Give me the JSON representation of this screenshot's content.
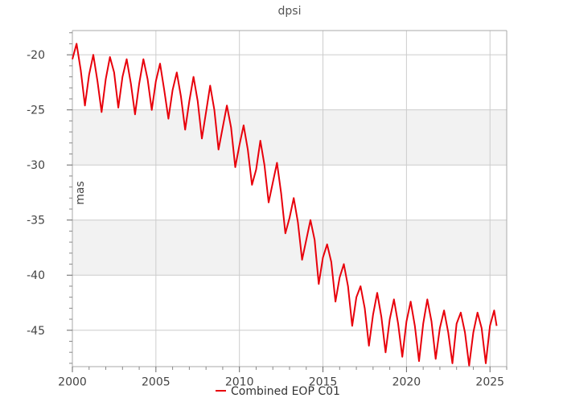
{
  "chart_data": {
    "type": "line",
    "title": "dpsi",
    "xlabel": "",
    "ylabel": "mas",
    "xlim": [
      2000,
      2026
    ],
    "ylim": [
      -48.3,
      -17.8
    ],
    "xticks": [
      2000,
      2005,
      2010,
      2015,
      2020,
      2025
    ],
    "xtick_labels": [
      "2000",
      "2005",
      "2010",
      "2015",
      "2020",
      "2025"
    ],
    "yticks": [
      -20,
      -25,
      -30,
      -35,
      -40,
      -45
    ],
    "ytick_labels": [
      "-20",
      "-25",
      "-30",
      "-35",
      "-40",
      "-45"
    ],
    "grid": true,
    "legend_position": "bottom-center",
    "colors": {
      "series": "#e8000b",
      "band": "#f2f2f2",
      "grid": "#cccccc",
      "axis": "#aaaaaa"
    },
    "series": [
      {
        "name": "Combined EOP C01",
        "x": [
          2000.0,
          2000.25,
          2000.5,
          2000.75,
          2001.0,
          2001.25,
          2001.5,
          2001.75,
          2002.0,
          2002.25,
          2002.5,
          2002.75,
          2003.0,
          2003.25,
          2003.5,
          2003.75,
          2004.0,
          2004.25,
          2004.5,
          2004.75,
          2005.0,
          2005.25,
          2005.5,
          2005.75,
          2006.0,
          2006.25,
          2006.5,
          2006.75,
          2007.0,
          2007.25,
          2007.5,
          2007.75,
          2008.0,
          2008.25,
          2008.5,
          2008.75,
          2009.0,
          2009.25,
          2009.5,
          2009.75,
          2010.0,
          2010.25,
          2010.5,
          2010.75,
          2011.0,
          2011.25,
          2011.5,
          2011.75,
          2012.0,
          2012.25,
          2012.5,
          2012.75,
          2013.0,
          2013.25,
          2013.5,
          2013.75,
          2014.0,
          2014.25,
          2014.5,
          2014.75,
          2015.0,
          2015.25,
          2015.5,
          2015.75,
          2016.0,
          2016.25,
          2016.5,
          2016.75,
          2017.0,
          2017.25,
          2017.5,
          2017.75,
          2018.0,
          2018.25,
          2018.5,
          2018.75,
          2019.0,
          2019.25,
          2019.5,
          2019.75,
          2020.0,
          2020.25,
          2020.5,
          2020.75,
          2021.0,
          2021.25,
          2021.5,
          2021.75,
          2022.0,
          2022.25,
          2022.5,
          2022.75,
          2023.0,
          2023.25,
          2023.5,
          2023.75,
          2024.0,
          2024.25,
          2024.5,
          2024.75,
          2025.0,
          2025.25,
          2025.4
        ],
        "y": [
          -20.4,
          -19.0,
          -21.4,
          -24.6,
          -21.8,
          -20.0,
          -22.4,
          -25.2,
          -22.2,
          -20.2,
          -21.6,
          -24.8,
          -22.0,
          -20.4,
          -22.6,
          -25.4,
          -22.6,
          -20.4,
          -22.2,
          -25.0,
          -22.4,
          -20.8,
          -23.2,
          -25.8,
          -23.2,
          -21.6,
          -23.8,
          -26.8,
          -24.2,
          -22.0,
          -24.2,
          -27.6,
          -25.2,
          -22.8,
          -25.0,
          -28.6,
          -26.6,
          -24.6,
          -26.6,
          -30.2,
          -28.2,
          -26.4,
          -28.6,
          -31.8,
          -30.4,
          -27.8,
          -30.0,
          -33.4,
          -31.6,
          -29.8,
          -32.6,
          -36.2,
          -34.8,
          -33.0,
          -35.2,
          -38.6,
          -36.8,
          -35.0,
          -36.8,
          -40.8,
          -38.4,
          -37.2,
          -38.8,
          -42.4,
          -40.2,
          -39.0,
          -41.0,
          -44.6,
          -42.0,
          -41.0,
          -43.0,
          -46.4,
          -43.6,
          -41.6,
          -43.8,
          -47.0,
          -44.0,
          -42.2,
          -44.4,
          -47.4,
          -44.2,
          -42.4,
          -44.6,
          -47.8,
          -44.4,
          -42.2,
          -44.2,
          -47.6,
          -44.8,
          -43.2,
          -45.2,
          -48.0,
          -44.4,
          -43.4,
          -45.2,
          -48.2,
          -45.2,
          -43.4,
          -44.8,
          -48.0,
          -44.6,
          -43.2,
          -44.6
        ]
      }
    ]
  }
}
